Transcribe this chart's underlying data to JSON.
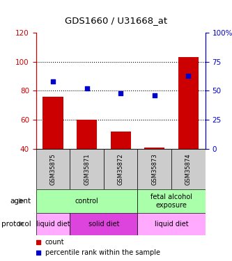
{
  "title": "GDS1660 / U31668_at",
  "samples": [
    "GSM35875",
    "GSM35871",
    "GSM35872",
    "GSM35873",
    "GSM35874"
  ],
  "bar_values": [
    76,
    60,
    52,
    41,
    103
  ],
  "bar_bottom": 40,
  "bar_color": "#cc0000",
  "scatter_percentile": [
    58,
    52,
    48,
    46,
    63
  ],
  "scatter_color": "#0000cc",
  "ylim_left": [
    40,
    120
  ],
  "ylim_right": [
    0,
    100
  ],
  "yticks_left": [
    40,
    60,
    80,
    100,
    120
  ],
  "yticks_right": [
    0,
    25,
    50,
    75,
    100
  ],
  "ytick_labels_left": [
    "40",
    "60",
    "80",
    "100",
    "120"
  ],
  "ytick_labels_right": [
    "0",
    "25",
    "50",
    "75",
    "100%"
  ],
  "left_axis_color": "#cc0000",
  "right_axis_color": "#0000cc",
  "grid_yticks": [
    60,
    80,
    100
  ],
  "agent_labels": [
    {
      "text": "control",
      "span": [
        0,
        3
      ],
      "color": "#aaffaa"
    },
    {
      "text": "fetal alcohol\nexposure",
      "span": [
        3,
        5
      ],
      "color": "#aaffaa"
    }
  ],
  "protocol_labels": [
    {
      "text": "liquid diet",
      "span": [
        0,
        1
      ],
      "color": "#ffaaff"
    },
    {
      "text": "solid diet",
      "span": [
        1,
        3
      ],
      "color": "#dd44dd"
    },
    {
      "text": "liquid diet",
      "span": [
        3,
        5
      ],
      "color": "#ffaaff"
    }
  ],
  "sample_box_color": "#cccccc",
  "legend_items": [
    {
      "color": "#cc0000",
      "label": "count"
    },
    {
      "color": "#0000cc",
      "label": "percentile rank within the sample"
    }
  ]
}
